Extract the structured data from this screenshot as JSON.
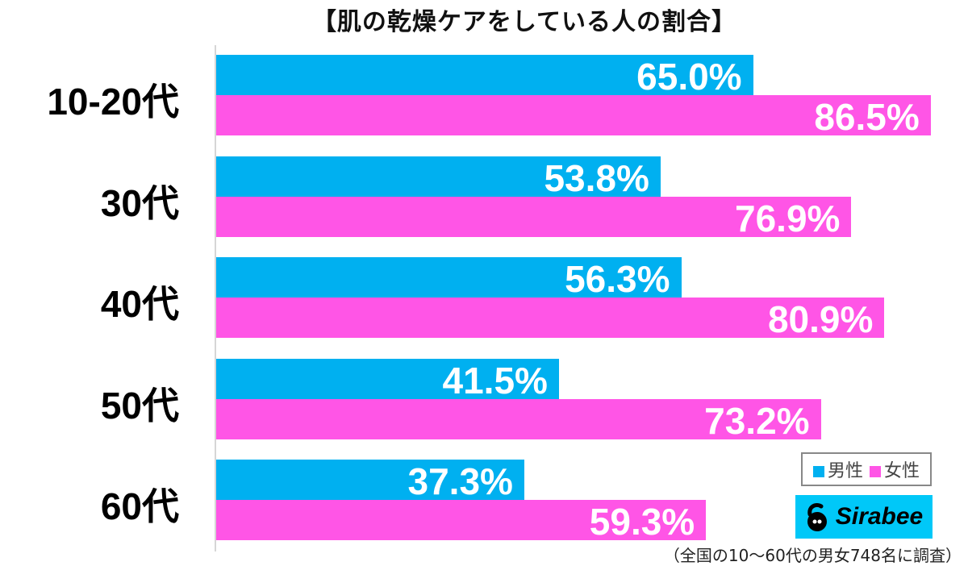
{
  "title": "【肌の乾燥ケアをしている人の割合】",
  "legend": {
    "male": "男性",
    "female": "女性",
    "male_color": "#00b0f0",
    "female_color": "#ff55e6"
  },
  "logo": {
    "text": "Sirabee"
  },
  "footnote": "（全国の10〜60代の男女748名に調査）",
  "rows": [
    {
      "label": "10-20代",
      "male": "65.0%",
      "female": "86.5%"
    },
    {
      "label": "30代",
      "male": "53.8%",
      "female": "76.9%"
    },
    {
      "label": "40代",
      "male": "56.3%",
      "female": "80.9%"
    },
    {
      "label": "50代",
      "male": "41.5%",
      "female": "73.2%"
    },
    {
      "label": "60代",
      "male": "37.3%",
      "female": "59.3%"
    }
  ],
  "chart_data": {
    "type": "bar",
    "orientation": "horizontal",
    "title": "【肌の乾燥ケアをしている人の割合】",
    "categories": [
      "10-20代",
      "30代",
      "40代",
      "50代",
      "60代"
    ],
    "series": [
      {
        "name": "男性",
        "color": "#00b0f0",
        "values": [
          65.0,
          53.8,
          56.3,
          41.5,
          37.3
        ]
      },
      {
        "name": "女性",
        "color": "#ff55e6",
        "values": [
          86.5,
          76.9,
          80.9,
          73.2,
          59.3
        ]
      }
    ],
    "xlabel": "",
    "ylabel": "",
    "xlim": [
      0,
      100
    ],
    "grid": false,
    "legend_position": "bottom-right",
    "annotations": [
      "（全国の10〜60代の男女748名に調査）",
      "Sirabee"
    ]
  }
}
